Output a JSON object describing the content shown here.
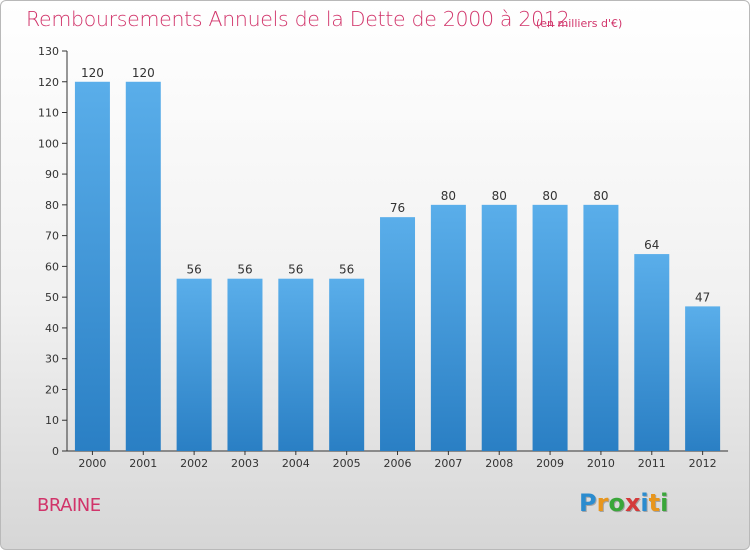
{
  "header": {
    "title": "Remboursements Annuels de la Dette de 2000 à 2012",
    "unit": "(en milliers d'€)"
  },
  "footer": {
    "city": "BRAINE",
    "logo_letters": [
      "P",
      "r",
      "o",
      "x",
      "i",
      "t",
      "i"
    ],
    "logo_colors": [
      "#2b8ccf",
      "#e8961c",
      "#3aa63a",
      "#d43a3a",
      "#2b8ccf",
      "#e8961c",
      "#3aa63a"
    ]
  },
  "chart_data": {
    "type": "bar",
    "title": "Remboursements Annuels de la Dette de 2000 à 2012",
    "subtitle": "(en milliers d'€)",
    "xlabel": "",
    "ylabel": "",
    "categories": [
      "2000",
      "2001",
      "2002",
      "2003",
      "2004",
      "2005",
      "2006",
      "2007",
      "2008",
      "2009",
      "2010",
      "2011",
      "2012"
    ],
    "values": [
      120,
      120,
      56,
      56,
      56,
      56,
      76,
      80,
      80,
      80,
      80,
      64,
      47
    ],
    "ylim": [
      0,
      130
    ],
    "ytick_step": 10,
    "grid": false,
    "legend": "none",
    "colors": {
      "bar_top": "#5aaeea",
      "bar_bottom": "#2a7fc4",
      "axis": "#333333",
      "text": "#d1346a"
    }
  }
}
